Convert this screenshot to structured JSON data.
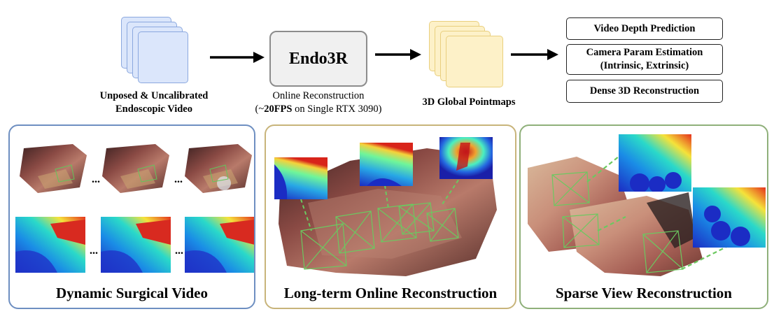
{
  "input": {
    "label_line1": "Unposed & Uncalibrated",
    "label_line2": "Endoscopic Video",
    "stack_color": "#dbe6fb",
    "stack_border": "#8ba8df"
  },
  "model": {
    "name": "Endo3R",
    "caption_line1": "Online Reconstruction",
    "caption_prefix": "(~",
    "caption_fps": "20FPS",
    "caption_suffix": " on Single RTX 3090)"
  },
  "pointmaps": {
    "label": "3D Global Pointmaps",
    "stack_color": "#fdf1c8",
    "stack_border": "#e9cf7e"
  },
  "outputs": [
    {
      "line1": "Video Depth Prediction",
      "line2": ""
    },
    {
      "line1": "Camera Param Estimation",
      "line2": "(Intrinsic, Extrinsic)"
    },
    {
      "line1": "Dense 3D Reconstruction",
      "line2": ""
    }
  ],
  "panels": [
    {
      "title": "Dynamic Surgical Video",
      "border_color": "#6e8fc1"
    },
    {
      "title": "Long-term Online Reconstruction",
      "border_color": "#c8b47a"
    },
    {
      "title": "Sparse View Reconstruction",
      "border_color": "#8fb07a"
    }
  ],
  "ellipsis": "..."
}
